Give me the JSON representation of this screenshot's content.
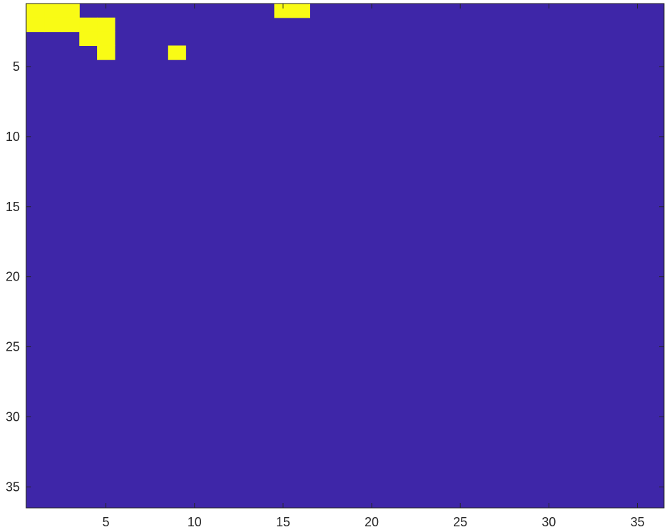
{
  "chart_data": {
    "type": "heatmap",
    "title": "",
    "xlabel": "",
    "ylabel": "",
    "xlim": [
      0.5,
      36.5
    ],
    "ylim": [
      0.5,
      36.5
    ],
    "y_direction": "reverse",
    "xticks": [
      5,
      10,
      15,
      20,
      25,
      30,
      35
    ],
    "yticks": [
      5,
      10,
      15,
      20,
      25,
      30,
      35
    ],
    "grid": false,
    "legend": "none",
    "colormap": {
      "0": "#3E26A8",
      "1": "#F9FB15"
    },
    "rows": [
      "111000000000001100000000000000000000",
      "111110000000000000000000000000000000",
      "000110000000000000000000000000000000",
      "000010001000000000000000000000000000",
      "000000000000000000000000000000000000",
      "000000000000000000000000000000000000",
      "000000000000000000000000000000000000",
      "000000000000000000000000000000000000",
      "000000000000000000000000000000000000",
      "000000000000000000000000000000000000",
      "000000000000000000000000000000000000",
      "000000000000000000000000000000000000",
      "000000000000000000000000000000000000",
      "000000000000000000000000000000000000",
      "000000000000000000000000000000000000",
      "000000000000000000000000000000000000",
      "000000000000000000000000000000000000",
      "000000000000000000000000000000000000",
      "000000000000000000000000000000000000",
      "000000000000000000000000000000000000",
      "000000000000000000000000000000000000",
      "000000000000000000000000000000000000",
      "000000000000000000000000000000000000",
      "000000000000000000000000000000000000",
      "000000000000000000000000000000000000",
      "000000000000000000000000000000000000",
      "000000000000000000000000000000000000",
      "000000000000000000000000000000000000",
      "000000000000000000000000000000000000",
      "000000000000000000000000000000000000",
      "000000000000000000000000000000000000",
      "000000000000000000000000000000000000",
      "000000000000000000000000000000000000",
      "000000000000000000000000000000000000",
      "000000000000000000000000000000000000",
      "000000000000000000000000000000000000"
    ]
  }
}
